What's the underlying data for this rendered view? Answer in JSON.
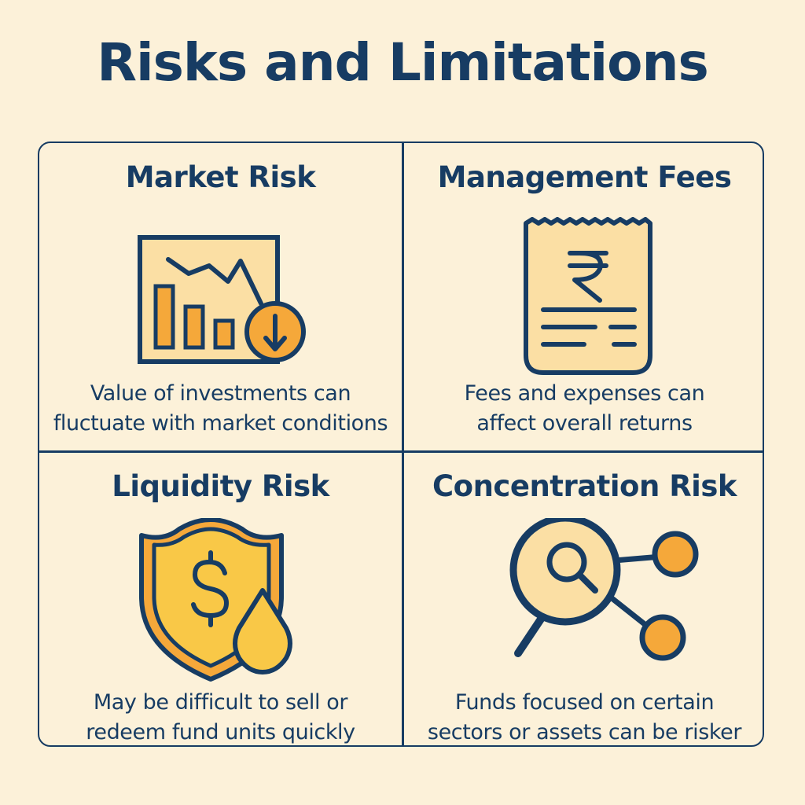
{
  "title": "Risks and Limitations",
  "colors": {
    "background": "#fcf1d9",
    "ink": "#173c63",
    "accent_orange": "#f5a83a",
    "accent_yellow": "#f9c847",
    "panel_fill": "#fbdfa4"
  },
  "cards": [
    {
      "title": "Market Risk",
      "icon": "falling-chart-icon",
      "description_lines": [
        "Value of investments can",
        "fluctuate with market conditions"
      ]
    },
    {
      "title": "Management Fees",
      "icon": "rupee-receipt-icon",
      "description_lines": [
        "Fees and expenses can",
        "affect overall returns"
      ]
    },
    {
      "title": "Liquidity Risk",
      "icon": "shield-dollar-drop-icon",
      "description_lines": [
        "May be difficult to sell or",
        "redeem fund units quickly"
      ]
    },
    {
      "title": "Concentration Risk",
      "icon": "magnifier-network-icon",
      "description_lines": [
        "Funds focused on certain",
        "sectors or assets can be risker"
      ]
    }
  ]
}
